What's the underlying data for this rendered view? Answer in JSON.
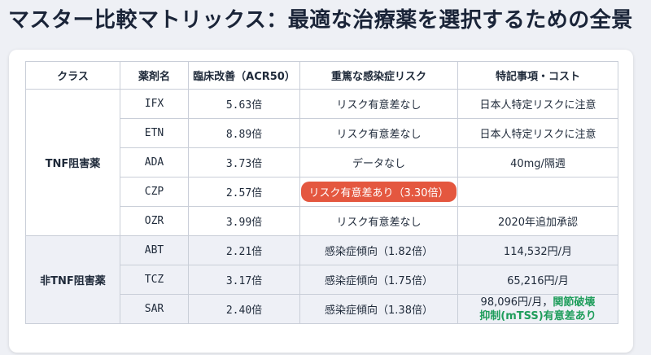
{
  "title": "マスター比較マトリックス：最適な治療薬を選択するための全景",
  "headers": [
    "クラス",
    "薬剤名",
    "臨床改善（ACR50）",
    "重篤な感染症リスク",
    "特記事項・コスト"
  ],
  "groups": [
    {
      "class": "TNF阻害薬",
      "rows": [
        {
          "drug": "IFX",
          "acr50": "5.63倍",
          "risk": "リスク有意差なし",
          "note": "日本人特定リスクに注意"
        },
        {
          "drug": "ETN",
          "acr50": "8.89倍",
          "risk": "リスク有意差なし",
          "note": "日本人特定リスクに注意"
        },
        {
          "drug": "ADA",
          "acr50": "3.73倍",
          "risk": "データなし",
          "note": "40mg/隔週"
        },
        {
          "drug": "CZP",
          "acr50": "2.57倍",
          "risk": "リスク有意差あり（3.30倍）",
          "note": ""
        },
        {
          "drug": "OZR",
          "acr50": "3.99倍",
          "risk": "リスク有意差なし",
          "note": "2020年追加承認"
        }
      ]
    },
    {
      "class": "非TNF阻害薬",
      "rows": [
        {
          "drug": "ABT",
          "acr50": "2.21倍",
          "risk": "感染症傾向（1.82倍）",
          "note": "114,532円/月"
        },
        {
          "drug": "TCZ",
          "acr50": "3.17倍",
          "risk": "感染症傾向（1.75倍）",
          "note": "65,216円/月"
        },
        {
          "drug": "SAR",
          "acr50": "2.40倍",
          "risk": "感染症傾向（1.38倍）",
          "note": "98,096円/月，",
          "note_green_1": "関節破壊",
          "note_green_2": "抑制(mTSS)有意差あり"
        }
      ]
    }
  ],
  "colors": {
    "risk_highlight": "#e4573f",
    "note_green": "#1f9d5b",
    "group_shade": "#eef0f6"
  }
}
